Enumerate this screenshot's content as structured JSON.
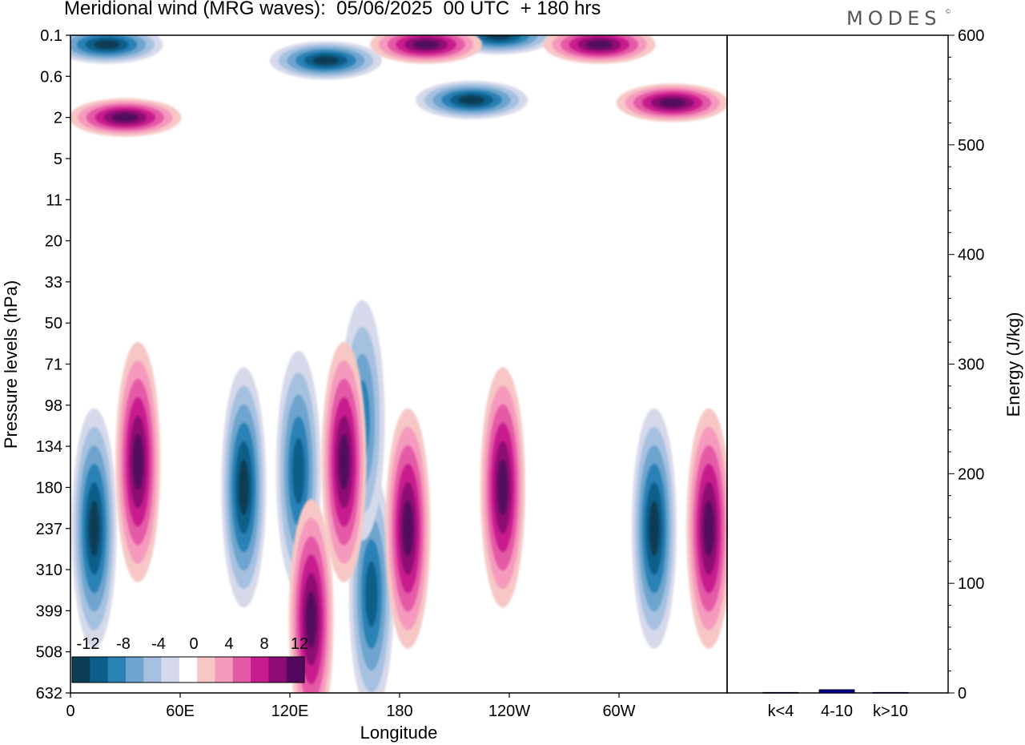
{
  "header": {
    "title": "Meridional wind (MRG waves):  05/06/2025  00 UTC  + 180 hrs",
    "brand": "MODES",
    "brand_mark": "©"
  },
  "colors": {
    "negative": [
      "#0b3d56",
      "#0d5f8a",
      "#2a81b5",
      "#6ea4cd",
      "#a6c1e0",
      "#d6d9ea"
    ],
    "positive": [
      "#f7c7c5",
      "#f59abd",
      "#e55aa6",
      "#c81b8e",
      "#8e0b73",
      "#53075f"
    ]
  },
  "chart_data": [
    {
      "type": "heatmap",
      "title": "Meridional wind (MRG waves):  05/06/2025  00 UTC  + 180 hrs",
      "xlabel": "Longitude",
      "ylabel": "Pressure levels (hPa)",
      "x_ticks": [
        "0",
        "60E",
        "120E",
        "180",
        "120W",
        "60W"
      ],
      "y_ticks": [
        "0.1",
        "0.6",
        "2",
        "5",
        "11",
        "20",
        "33",
        "50",
        "71",
        "98",
        "134",
        "180",
        "237",
        "310",
        "399",
        "508",
        "632"
      ],
      "colorbar": {
        "labels": [
          "-12",
          "-8",
          "-4",
          "0",
          "4",
          "8",
          "12"
        ],
        "levels": [
          -14,
          -12,
          -10,
          -8,
          -6,
          -4,
          -2,
          2,
          4,
          6,
          8,
          10,
          12,
          14
        ]
      },
      "series": [
        {
          "sign": -1,
          "lon": 13,
          "level": 237,
          "value": -12
        },
        {
          "sign": -1,
          "lon": 95,
          "level": 180,
          "value": -12
        },
        {
          "sign": -1,
          "lon": 125,
          "level": 160,
          "value": -8
        },
        {
          "sign": -1,
          "lon": 165,
          "level": 360,
          "value": -8
        },
        {
          "sign": -1,
          "lon": 160,
          "level": 110,
          "value": -6
        },
        {
          "sign": -1,
          "lon": 235,
          "level": 0.1,
          "value": -14
        },
        {
          "sign": -1,
          "lon": 220,
          "level": 1.2,
          "value": -14
        },
        {
          "sign": -1,
          "lon": 20,
          "level": 0.15,
          "value": -10
        },
        {
          "sign": -1,
          "lon": 140,
          "level": 0.3,
          "value": -10
        },
        {
          "sign": -1,
          "lon": 320,
          "level": 237,
          "value": -12
        },
        {
          "sign": 1,
          "lon": 37,
          "level": 150,
          "value": 10
        },
        {
          "sign": 1,
          "lon": 150,
          "level": 150,
          "value": 14
        },
        {
          "sign": 1,
          "lon": 132,
          "level": 420,
          "value": 12
        },
        {
          "sign": 1,
          "lon": 185,
          "level": 237,
          "value": 12
        },
        {
          "sign": 1,
          "lon": 237,
          "level": 180,
          "value": 12
        },
        {
          "sign": 1,
          "lon": 350,
          "level": 237,
          "value": 14
        },
        {
          "sign": 1,
          "lon": 195,
          "level": 0.15,
          "value": 14
        },
        {
          "sign": 1,
          "lon": 290,
          "level": 0.15,
          "value": 14
        },
        {
          "sign": 1,
          "lon": 330,
          "level": 1.3,
          "value": 12
        },
        {
          "sign": 1,
          "lon": 30,
          "level": 2,
          "value": 12
        }
      ]
    },
    {
      "type": "bar",
      "categories": [
        "k<4",
        "4-10",
        "k>10"
      ],
      "values": [
        0.5,
        3,
        0.5
      ],
      "ylabel": "Energy (J/kg)",
      "ylim": [
        0,
        600
      ],
      "y_ticks": [
        "0",
        "100",
        "200",
        "300",
        "400",
        "500",
        "600"
      ],
      "bar_colors": [
        "#00008b",
        "#00008b",
        "#00008b"
      ]
    }
  ]
}
